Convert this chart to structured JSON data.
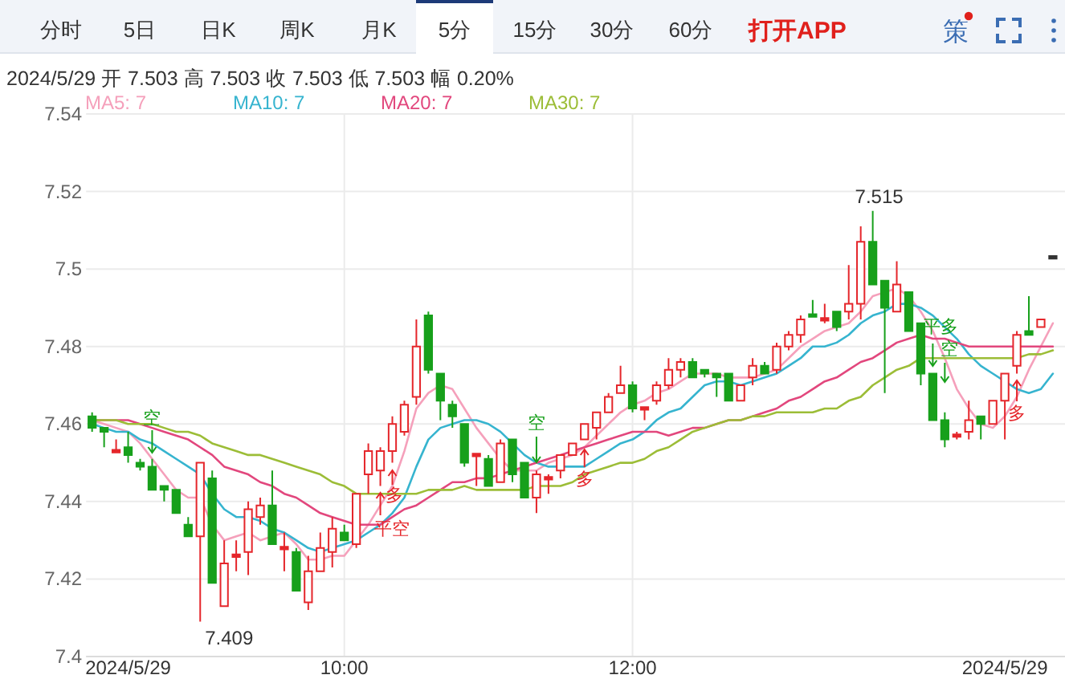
{
  "chart_data": {
    "type": "candlestick",
    "subtitle": "2024/5/29 开 7.503 高 7.503 收 7.503 低 7.503 幅 0.20%",
    "categories": [
      null,
      null,
      null,
      "2024/5/29",
      null,
      null,
      null,
      null,
      null,
      null,
      null,
      null,
      null,
      null,
      null,
      null,
      null,
      null,
      null,
      null,
      null,
      "10:00",
      null,
      null,
      null,
      null,
      null,
      null,
      null,
      null,
      null,
      null,
      null,
      null,
      null,
      null,
      null,
      null,
      null,
      null,
      null,
      null,
      null,
      null,
      null,
      "12:00",
      null,
      null,
      null,
      null,
      null,
      null,
      null,
      null,
      null,
      null,
      null,
      null,
      null,
      null,
      null,
      null,
      null,
      null,
      null,
      null,
      null,
      null,
      null,
      null,
      null,
      null,
      null,
      null,
      null,
      null,
      "2024/5/29",
      null,
      null,
      null,
      null
    ],
    "ohlc": [
      [
        7.462,
        7.463,
        7.458,
        7.459
      ],
      [
        7.459,
        7.459,
        7.454,
        7.458
      ],
      [
        7.453,
        7.456,
        7.453,
        7.453
      ],
      [
        7.454,
        7.458,
        7.45,
        7.452
      ],
      [
        7.45,
        7.451,
        7.448,
        7.449
      ],
      [
        7.449,
        7.451,
        7.443,
        7.443
      ],
      [
        7.444,
        7.444,
        7.44,
        7.443
      ],
      [
        7.443,
        7.443,
        7.437,
        7.437
      ],
      [
        7.434,
        7.436,
        7.431,
        7.431
      ],
      [
        7.431,
        7.45,
        7.409,
        7.45
      ],
      [
        7.446,
        7.448,
        7.419,
        7.419
      ],
      [
        7.413,
        7.43,
        7.413,
        7.424
      ],
      [
        7.426,
        7.43,
        7.422,
        7.426
      ],
      [
        7.427,
        7.44,
        7.421,
        7.438
      ],
      [
        7.436,
        7.441,
        7.434,
        7.439
      ],
      [
        7.439,
        7.448,
        7.429,
        7.429
      ],
      [
        7.428,
        7.432,
        7.422,
        7.428
      ],
      [
        7.427,
        7.428,
        7.417,
        7.417
      ],
      [
        7.414,
        7.426,
        7.412,
        7.422
      ],
      [
        7.422,
        7.432,
        7.422,
        7.428
      ],
      [
        7.427,
        7.436,
        7.423,
        7.433
      ],
      [
        7.432,
        7.434,
        7.43,
        7.43
      ],
      [
        7.429,
        7.442,
        7.428,
        7.442
      ],
      [
        7.447,
        7.455,
        7.442,
        7.453
      ],
      [
        7.448,
        7.454,
        7.444,
        7.453
      ],
      [
        7.453,
        7.462,
        7.45,
        7.46
      ],
      [
        7.458,
        7.466,
        7.457,
        7.465
      ],
      [
        7.467,
        7.487,
        7.465,
        7.48
      ],
      [
        7.488,
        7.489,
        7.473,
        7.474
      ],
      [
        7.473,
        7.473,
        7.461,
        7.466
      ],
      [
        7.465,
        7.466,
        7.459,
        7.462
      ],
      [
        7.46,
        7.46,
        7.449,
        7.45
      ],
      [
        7.452,
        7.452,
        7.444,
        7.452
      ],
      [
        7.451,
        7.452,
        7.444,
        7.444
      ],
      [
        7.445,
        7.456,
        7.445,
        7.455
      ],
      [
        7.456,
        7.456,
        7.445,
        7.447
      ],
      [
        7.45,
        7.45,
        7.441,
        7.441
      ],
      [
        7.441,
        7.448,
        7.437,
        7.447
      ],
      [
        7.446,
        7.447,
        7.442,
        7.446
      ],
      [
        7.448,
        7.452,
        7.446,
        7.452
      ],
      [
        7.452,
        7.455,
        7.452,
        7.455
      ],
      [
        7.456,
        7.46,
        7.456,
        7.46
      ],
      [
        7.459,
        7.463,
        7.456,
        7.463
      ],
      [
        7.463,
        7.468,
        7.463,
        7.467
      ],
      [
        7.468,
        7.475,
        7.468,
        7.47
      ],
      [
        7.47,
        7.471,
        7.463,
        7.464
      ],
      [
        7.464,
        7.464,
        7.461,
        7.464
      ],
      [
        7.466,
        7.471,
        7.465,
        7.47
      ],
      [
        7.47,
        7.477,
        7.469,
        7.474
      ],
      [
        7.474,
        7.477,
        7.472,
        7.476
      ],
      [
        7.476,
        7.477,
        7.472,
        7.472
      ],
      [
        7.474,
        7.474,
        7.472,
        7.473
      ],
      [
        7.473,
        7.473,
        7.467,
        7.472
      ],
      [
        7.473,
        7.473,
        7.466,
        7.466
      ],
      [
        7.466,
        7.47,
        7.466,
        7.47
      ],
      [
        7.472,
        7.477,
        7.47,
        7.475
      ],
      [
        7.475,
        7.476,
        7.473,
        7.473
      ],
      [
        7.474,
        7.481,
        7.473,
        7.48
      ],
      [
        7.48,
        7.484,
        7.479,
        7.483
      ],
      [
        7.483,
        7.488,
        7.481,
        7.487
      ],
      [
        7.488,
        7.492,
        7.488,
        7.488
      ],
      [
        7.487,
        7.491,
        7.486,
        7.487
      ],
      [
        7.489,
        7.489,
        7.484,
        7.485
      ],
      [
        7.489,
        7.501,
        7.487,
        7.491
      ],
      [
        7.491,
        7.511,
        7.487,
        7.507
      ],
      [
        7.507,
        7.515,
        7.496,
        7.496
      ],
      [
        7.497,
        7.497,
        7.468,
        7.49
      ],
      [
        7.489,
        7.502,
        7.489,
        7.496
      ],
      [
        7.494,
        7.494,
        7.484,
        7.484
      ],
      [
        7.486,
        7.486,
        7.47,
        7.473
      ],
      [
        7.473,
        7.473,
        7.461,
        7.461
      ],
      [
        7.461,
        7.463,
        7.454,
        7.456
      ],
      [
        7.457,
        7.458,
        7.456,
        7.457
      ],
      [
        7.458,
        7.466,
        7.456,
        7.461
      ],
      [
        7.462,
        7.462,
        7.456,
        7.46
      ],
      [
        7.46,
        7.466,
        7.46,
        7.466
      ],
      [
        7.466,
        7.473,
        7.456,
        7.473
      ],
      [
        7.475,
        7.484,
        7.473,
        7.483
      ],
      [
        7.484,
        7.493,
        7.483,
        7.483
      ],
      [
        7.485,
        7.487,
        7.485,
        7.487
      ],
      [
        7.503,
        7.503,
        7.503,
        7.503
      ]
    ],
    "colors": [
      "#17a01b",
      "#17a01b",
      "#e5262b",
      "#17a01b",
      "#17a01b",
      "#17a01b",
      "#17a01b",
      "#17a01b",
      "#17a01b",
      "#e5262b",
      "#17a01b",
      "#e5262b",
      "#e5262b",
      "#e5262b",
      "#e5262b",
      "#17a01b",
      "#e5262b",
      "#17a01b",
      "#e5262b",
      "#e5262b",
      "#e5262b",
      "#17a01b",
      "#e5262b",
      "#e5262b",
      "#e5262b",
      "#e5262b",
      "#e5262b",
      "#e5262b",
      "#17a01b",
      "#17a01b",
      "#17a01b",
      "#17a01b",
      "#e5262b",
      "#17a01b",
      "#e5262b",
      "#17a01b",
      "#17a01b",
      "#e5262b",
      "#e5262b",
      "#e5262b",
      "#e5262b",
      "#e5262b",
      "#e5262b",
      "#e5262b",
      "#e5262b",
      "#17a01b",
      "#e5262b",
      "#e5262b",
      "#e5262b",
      "#e5262b",
      "#17a01b",
      "#17a01b",
      "#17a01b",
      "#17a01b",
      "#e5262b",
      "#e5262b",
      "#17a01b",
      "#e5262b",
      "#e5262b",
      "#e5262b",
      "#17a01b",
      "#e5262b",
      "#17a01b",
      "#e5262b",
      "#e5262b",
      "#17a01b",
      "#17a01b",
      "#e5262b",
      "#17a01b",
      "#17a01b",
      "#17a01b",
      "#17a01b",
      "#e5262b",
      "#e5262b",
      "#17a01b",
      "#e5262b",
      "#e5262b",
      "#e5262b",
      "#17a01b",
      "#e5262b",
      "#333333"
    ],
    "series": [
      {
        "name": "MA5: 7",
        "type": "line",
        "color": "#f5a0bb",
        "values": [
          7.461,
          7.46,
          7.459,
          7.458,
          7.455,
          7.451,
          7.447,
          7.443,
          7.441,
          7.441,
          7.434,
          7.43,
          7.431,
          7.432,
          7.43,
          7.431,
          7.432,
          7.429,
          7.425,
          7.425,
          7.426,
          7.426,
          7.43,
          7.434,
          7.439,
          7.444,
          7.453,
          7.464,
          7.468,
          7.47,
          7.469,
          7.464,
          7.459,
          7.455,
          7.451,
          7.448,
          7.448,
          7.448,
          7.45,
          7.451,
          7.452,
          7.454,
          7.457,
          7.46,
          7.463,
          7.465,
          7.466,
          7.468,
          7.469,
          7.471,
          7.473,
          7.473,
          7.473,
          7.472,
          7.472,
          7.472,
          7.473,
          7.474,
          7.477,
          7.48,
          7.482,
          7.484,
          7.485,
          7.486,
          7.489,
          7.493,
          7.494,
          7.495,
          7.493,
          7.489,
          7.484,
          7.477,
          7.469,
          7.464,
          7.46,
          7.459,
          7.462,
          7.467,
          7.474,
          7.48,
          7.486
        ]
      },
      {
        "name": "MA10: 7",
        "type": "line",
        "color": "#36b4cf",
        "values": [
          7.46,
          7.459,
          7.458,
          7.458,
          7.456,
          7.455,
          7.453,
          7.451,
          7.449,
          7.447,
          7.442,
          7.438,
          7.436,
          7.436,
          7.435,
          7.433,
          7.432,
          7.43,
          7.428,
          7.427,
          7.428,
          7.429,
          7.43,
          7.432,
          7.434,
          7.437,
          7.441,
          7.449,
          7.456,
          7.459,
          7.46,
          7.461,
          7.461,
          7.46,
          7.458,
          7.455,
          7.452,
          7.45,
          7.449,
          7.449,
          7.449,
          7.449,
          7.451,
          7.453,
          7.455,
          7.456,
          7.458,
          7.461,
          7.463,
          7.464,
          7.467,
          7.47,
          7.471,
          7.471,
          7.47,
          7.471,
          7.472,
          7.473,
          7.475,
          7.477,
          7.48,
          7.48,
          7.481,
          7.483,
          7.486,
          7.488,
          7.489,
          7.491,
          7.491,
          7.49,
          7.488,
          7.485,
          7.482,
          7.478,
          7.475,
          7.473,
          7.471,
          7.469,
          7.468,
          7.469,
          7.473
        ]
      },
      {
        "name": "MA20: 7",
        "type": "line",
        "color": "#e2477d",
        "values": [
          7.461,
          7.461,
          7.461,
          7.461,
          7.46,
          7.459,
          7.458,
          7.457,
          7.456,
          7.454,
          7.452,
          7.449,
          7.448,
          7.447,
          7.445,
          7.444,
          7.442,
          7.441,
          7.439,
          7.437,
          7.436,
          7.435,
          7.434,
          7.434,
          7.434,
          7.436,
          7.438,
          7.439,
          7.441,
          7.443,
          7.445,
          7.445,
          7.446,
          7.446,
          7.447,
          7.448,
          7.449,
          7.45,
          7.451,
          7.452,
          7.453,
          7.454,
          7.455,
          7.456,
          7.457,
          7.458,
          7.458,
          7.458,
          7.457,
          7.458,
          7.459,
          7.459,
          7.46,
          7.461,
          7.461,
          7.462,
          7.463,
          7.464,
          7.466,
          7.467,
          7.469,
          7.471,
          7.472,
          7.474,
          7.476,
          7.477,
          7.479,
          7.481,
          7.482,
          7.483,
          7.482,
          7.482,
          7.481,
          7.48,
          7.48,
          7.48,
          7.48,
          7.48,
          7.48,
          7.48,
          7.48
        ]
      },
      {
        "name": "MA30: 7",
        "type": "line",
        "color": "#9cbd37",
        "values": [
          7.461,
          7.461,
          7.461,
          7.46,
          7.46,
          7.46,
          7.459,
          7.458,
          7.458,
          7.457,
          7.455,
          7.454,
          7.453,
          7.452,
          7.452,
          7.451,
          7.45,
          7.449,
          7.448,
          7.447,
          7.445,
          7.444,
          7.442,
          7.442,
          7.442,
          7.442,
          7.442,
          7.442,
          7.443,
          7.443,
          7.443,
          7.444,
          7.443,
          7.443,
          7.443,
          7.443,
          7.443,
          7.444,
          7.444,
          7.444,
          7.445,
          7.447,
          7.448,
          7.449,
          7.45,
          7.45,
          7.451,
          7.453,
          7.454,
          7.456,
          7.458,
          7.459,
          7.46,
          7.461,
          7.461,
          7.462,
          7.462,
          7.463,
          7.463,
          7.463,
          7.463,
          7.464,
          7.464,
          7.466,
          7.467,
          7.47,
          7.472,
          7.474,
          7.475,
          7.477,
          7.477,
          7.477,
          7.477,
          7.477,
          7.477,
          7.477,
          7.477,
          7.477,
          7.478,
          7.478,
          7.479
        ]
      }
    ],
    "ylim": [
      7.4,
      7.54
    ],
    "yticks": [
      7.4,
      7.42,
      7.44,
      7.46,
      7.48,
      7.5,
      7.52,
      7.54
    ],
    "grid": true,
    "legend": "top left",
    "annotations": [
      "分时",
      "5日",
      "日K",
      "周K",
      "月K",
      "5分",
      "15分",
      "30分",
      "60分",
      "打开APP",
      "策",
      "7.515",
      "7.409",
      "空",
      "平空",
      "多",
      "空",
      "多",
      "平多",
      "空",
      "多"
    ]
  }
}
